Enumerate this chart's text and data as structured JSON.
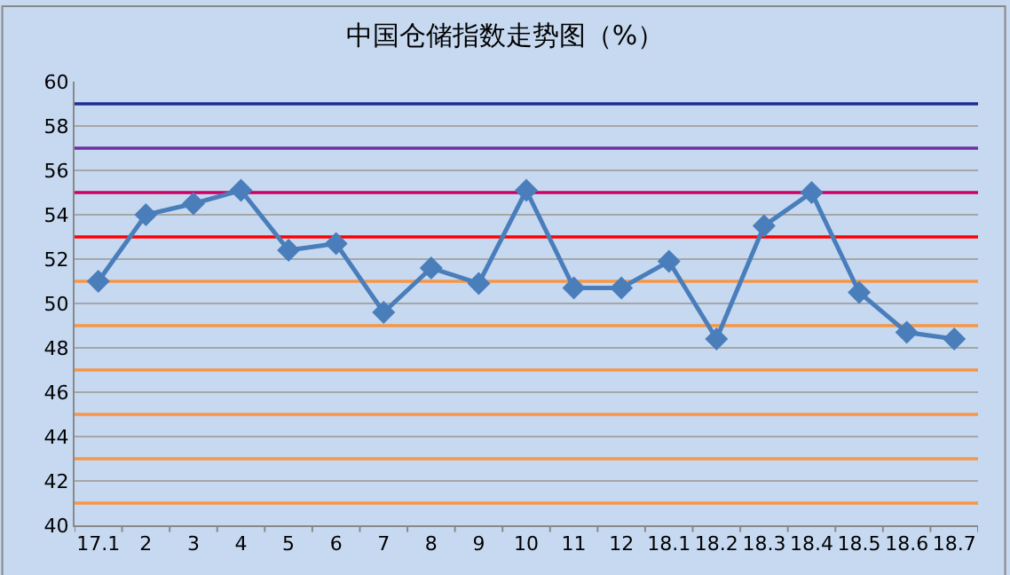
{
  "chart_data": {
    "type": "line",
    "title": "中国仓储指数走势图（%）",
    "categories": [
      "17.1",
      "2",
      "3",
      "4",
      "5",
      "6",
      "7",
      "8",
      "9",
      "10",
      "11",
      "12",
      "18.1",
      "18.2",
      "18.3",
      "18.4",
      "18.5",
      "18.6",
      "18.7"
    ],
    "series": [
      {
        "color": "#4a7ebb",
        "values": [
          51.0,
          54.0,
          54.5,
          55.1,
          52.4,
          52.7,
          49.6,
          51.6,
          50.9,
          55.1,
          50.7,
          50.7,
          51.9,
          48.4,
          53.5,
          55.0,
          50.5,
          48.7,
          48.4
        ]
      }
    ],
    "ylim": [
      40,
      60
    ],
    "yticks": [
      40,
      42,
      44,
      46,
      48,
      50,
      52,
      54,
      56,
      58,
      60
    ],
    "grid": "y",
    "marker": "diamond",
    "line_style": "solid",
    "legend": false,
    "ref_lines": [
      {
        "axis": "y",
        "value": 41,
        "color": "#f79646"
      },
      {
        "axis": "y",
        "value": 43,
        "color": "#f79646"
      },
      {
        "axis": "y",
        "value": 45,
        "color": "#f79646"
      },
      {
        "axis": "y",
        "value": 47,
        "color": "#f79646"
      },
      {
        "axis": "y",
        "value": 49,
        "color": "#f79646"
      },
      {
        "axis": "y",
        "value": 51,
        "color": "#f79646"
      },
      {
        "axis": "y",
        "value": 53,
        "color": "#ff0000"
      },
      {
        "axis": "y",
        "value": 55,
        "color": "#cc0066"
      },
      {
        "axis": "y",
        "value": 57,
        "color": "#7030a0"
      },
      {
        "axis": "y",
        "value": 59,
        "color": "#1f2f8f"
      }
    ]
  }
}
